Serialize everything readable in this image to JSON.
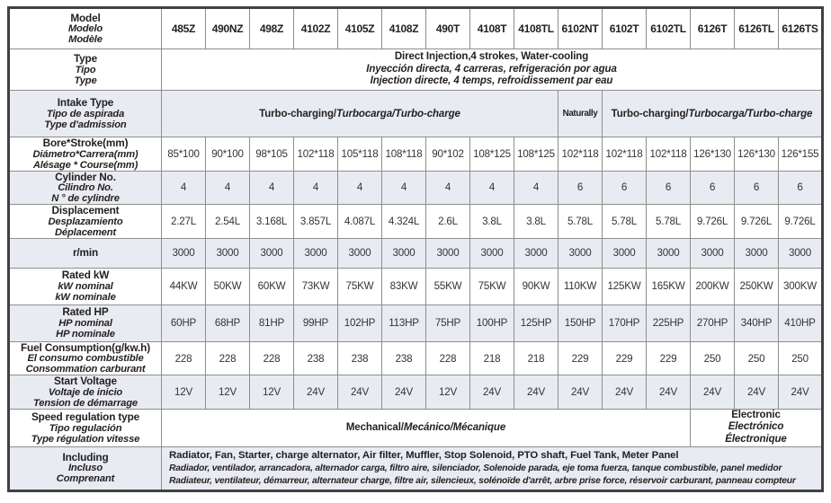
{
  "colors": {
    "shaded_row_bg": "#e9ebf2",
    "outer_border": "#414042",
    "inner_border": "#8e8e8e",
    "text": "#231f20"
  },
  "table": {
    "models": [
      "485Z",
      "490NZ",
      "498Z",
      "4102Z",
      "4105Z",
      "4108Z",
      "490T",
      "4108T",
      "4108TL",
      "6102NT",
      "6102T",
      "6102TL",
      "6126T",
      "6126TL",
      "6126TS"
    ],
    "rows": [
      {
        "kind": "models",
        "shaded": false,
        "label": [
          "Model",
          "Modelo",
          "Modèle"
        ]
      },
      {
        "kind": "span",
        "shaded": false,
        "label": [
          "Type",
          "Tipo",
          "Type"
        ],
        "spans": [
          {
            "cols": 15,
            "lines": [
              "Direct Injection,4 strokes, Water-cooling",
              "Inyección directa, 4 carreras, refrigeración por agua",
              "Injection directe, 4 temps, refroidissement par eau"
            ]
          }
        ]
      },
      {
        "kind": "span",
        "shaded": true,
        "label": [
          "Intake Type",
          "Tipo de aspirada",
          "Type d'admission"
        ],
        "spans": [
          {
            "cols": 9,
            "segs": [
              [
                "Turbo-charging/",
                0
              ],
              [
                "Turbocarga/Turbo-charge",
                1
              ]
            ]
          },
          {
            "cols": 1,
            "segs": [
              [
                "Naturally",
                0
              ]
            ]
          },
          {
            "cols": 5,
            "segs": [
              [
                "Turbo-charging/",
                0
              ],
              [
                "Turbocarga/Turbo-charge",
                1
              ]
            ]
          }
        ]
      },
      {
        "kind": "cells",
        "shaded": false,
        "label": [
          "Bore*Stroke(mm)",
          "Diámetro*Carrera(mm)",
          "Alésage * Course(mm)"
        ],
        "cells": [
          "85*100",
          "90*100",
          "98*105",
          "102*118",
          "105*118",
          "108*118",
          "90*102",
          "108*125",
          "108*125",
          "102*118",
          "102*118",
          "102*118",
          "126*130",
          "126*130",
          "126*155"
        ]
      },
      {
        "kind": "cells",
        "shaded": true,
        "label": [
          "Cylinder No.",
          "Cilindro No.",
          "N ° de cylindre"
        ],
        "cells": [
          "4",
          "4",
          "4",
          "4",
          "4",
          "4",
          "4",
          "4",
          "4",
          "6",
          "6",
          "6",
          "6",
          "6",
          "6"
        ]
      },
      {
        "kind": "cells",
        "shaded": false,
        "label": [
          "Displacement",
          "Desplazamiento",
          "Déplacement"
        ],
        "cells": [
          "2.27L",
          "2.54L",
          "3.168L",
          "3.857L",
          "4.087L",
          "4.324L",
          "2.6L",
          "3.8L",
          "3.8L",
          "5.78L",
          "5.78L",
          "5.78L",
          "9.726L",
          "9.726L",
          "9.726L"
        ]
      },
      {
        "kind": "cells",
        "shaded": true,
        "label": [
          "r/min"
        ],
        "cells": [
          "3000",
          "3000",
          "3000",
          "3000",
          "3000",
          "3000",
          "3000",
          "3000",
          "3000",
          "3000",
          "3000",
          "3000",
          "3000",
          "3000",
          "3000"
        ]
      },
      {
        "kind": "cells",
        "shaded": false,
        "label": [
          "Rated kW",
          "kW nominal",
          "kW nominale"
        ],
        "cells": [
          "44KW",
          "50KW",
          "60KW",
          "73KW",
          "75KW",
          "83KW",
          "55KW",
          "75KW",
          "90KW",
          "110KW",
          "125KW",
          "165KW",
          "200KW",
          "250KW",
          "300KW"
        ]
      },
      {
        "kind": "cells",
        "shaded": true,
        "label": [
          "Rated HP",
          "HP nominal",
          "HP nominale"
        ],
        "cells": [
          "60HP",
          "68HP",
          "81HP",
          "99HP",
          "102HP",
          "113HP",
          "75HP",
          "100HP",
          "125HP",
          "150HP",
          "170HP",
          "225HP",
          "270HP",
          "340HP",
          "410HP"
        ]
      },
      {
        "kind": "cells",
        "shaded": false,
        "label": [
          "Fuel Consumption(g/kw.h)",
          "El consumo combustible",
          "Consommation carburant"
        ],
        "cells": [
          "228",
          "228",
          "228",
          "238",
          "238",
          "238",
          "228",
          "218",
          "218",
          "229",
          "229",
          "229",
          "250",
          "250",
          "250"
        ]
      },
      {
        "kind": "cells",
        "shaded": true,
        "label": [
          "Start Voltage",
          "Voltaje de inicio",
          "Tension de démarrage"
        ],
        "cells": [
          "12V",
          "12V",
          "12V",
          "24V",
          "24V",
          "24V",
          "12V",
          "24V",
          "24V",
          "24V",
          "24V",
          "24V",
          "24V",
          "24V",
          "24V"
        ]
      },
      {
        "kind": "span",
        "shaded": false,
        "label": [
          "Speed regulation type",
          "Tipo regulación",
          "Type régulation vitesse"
        ],
        "spans": [
          {
            "cols": 12,
            "segs": [
              [
                "Mechanical/",
                0
              ],
              [
                "Mecánico/Mécanique",
                1
              ]
            ]
          },
          {
            "cols": 3,
            "lines": [
              "Electronic",
              "Electrónico",
              "Électronique"
            ]
          }
        ]
      },
      {
        "kind": "span",
        "shaded": true,
        "label": [
          "Including",
          "Incluso",
          "Comprenant"
        ],
        "spans": [
          {
            "cols": 15,
            "align": "left",
            "lines": [
              "Radiator, Fan, Starter, charge alternator, Air filter, Muffler, Stop Solenoid, PTO shaft, Fuel Tank, Meter Panel",
              "Radiador, ventilador, arrancadora, alternador carga, filtro aire, silenciador, Solenoide parada, eje toma fuerza, tanque combustible, panel medidor",
              "Radiateur, ventilateur, démarreur, alternateur charge, filtre air, silencieux, solénoïde d'arrêt, arbre prise force, réservoir carburant, panneau compteur"
            ]
          }
        ]
      }
    ]
  }
}
